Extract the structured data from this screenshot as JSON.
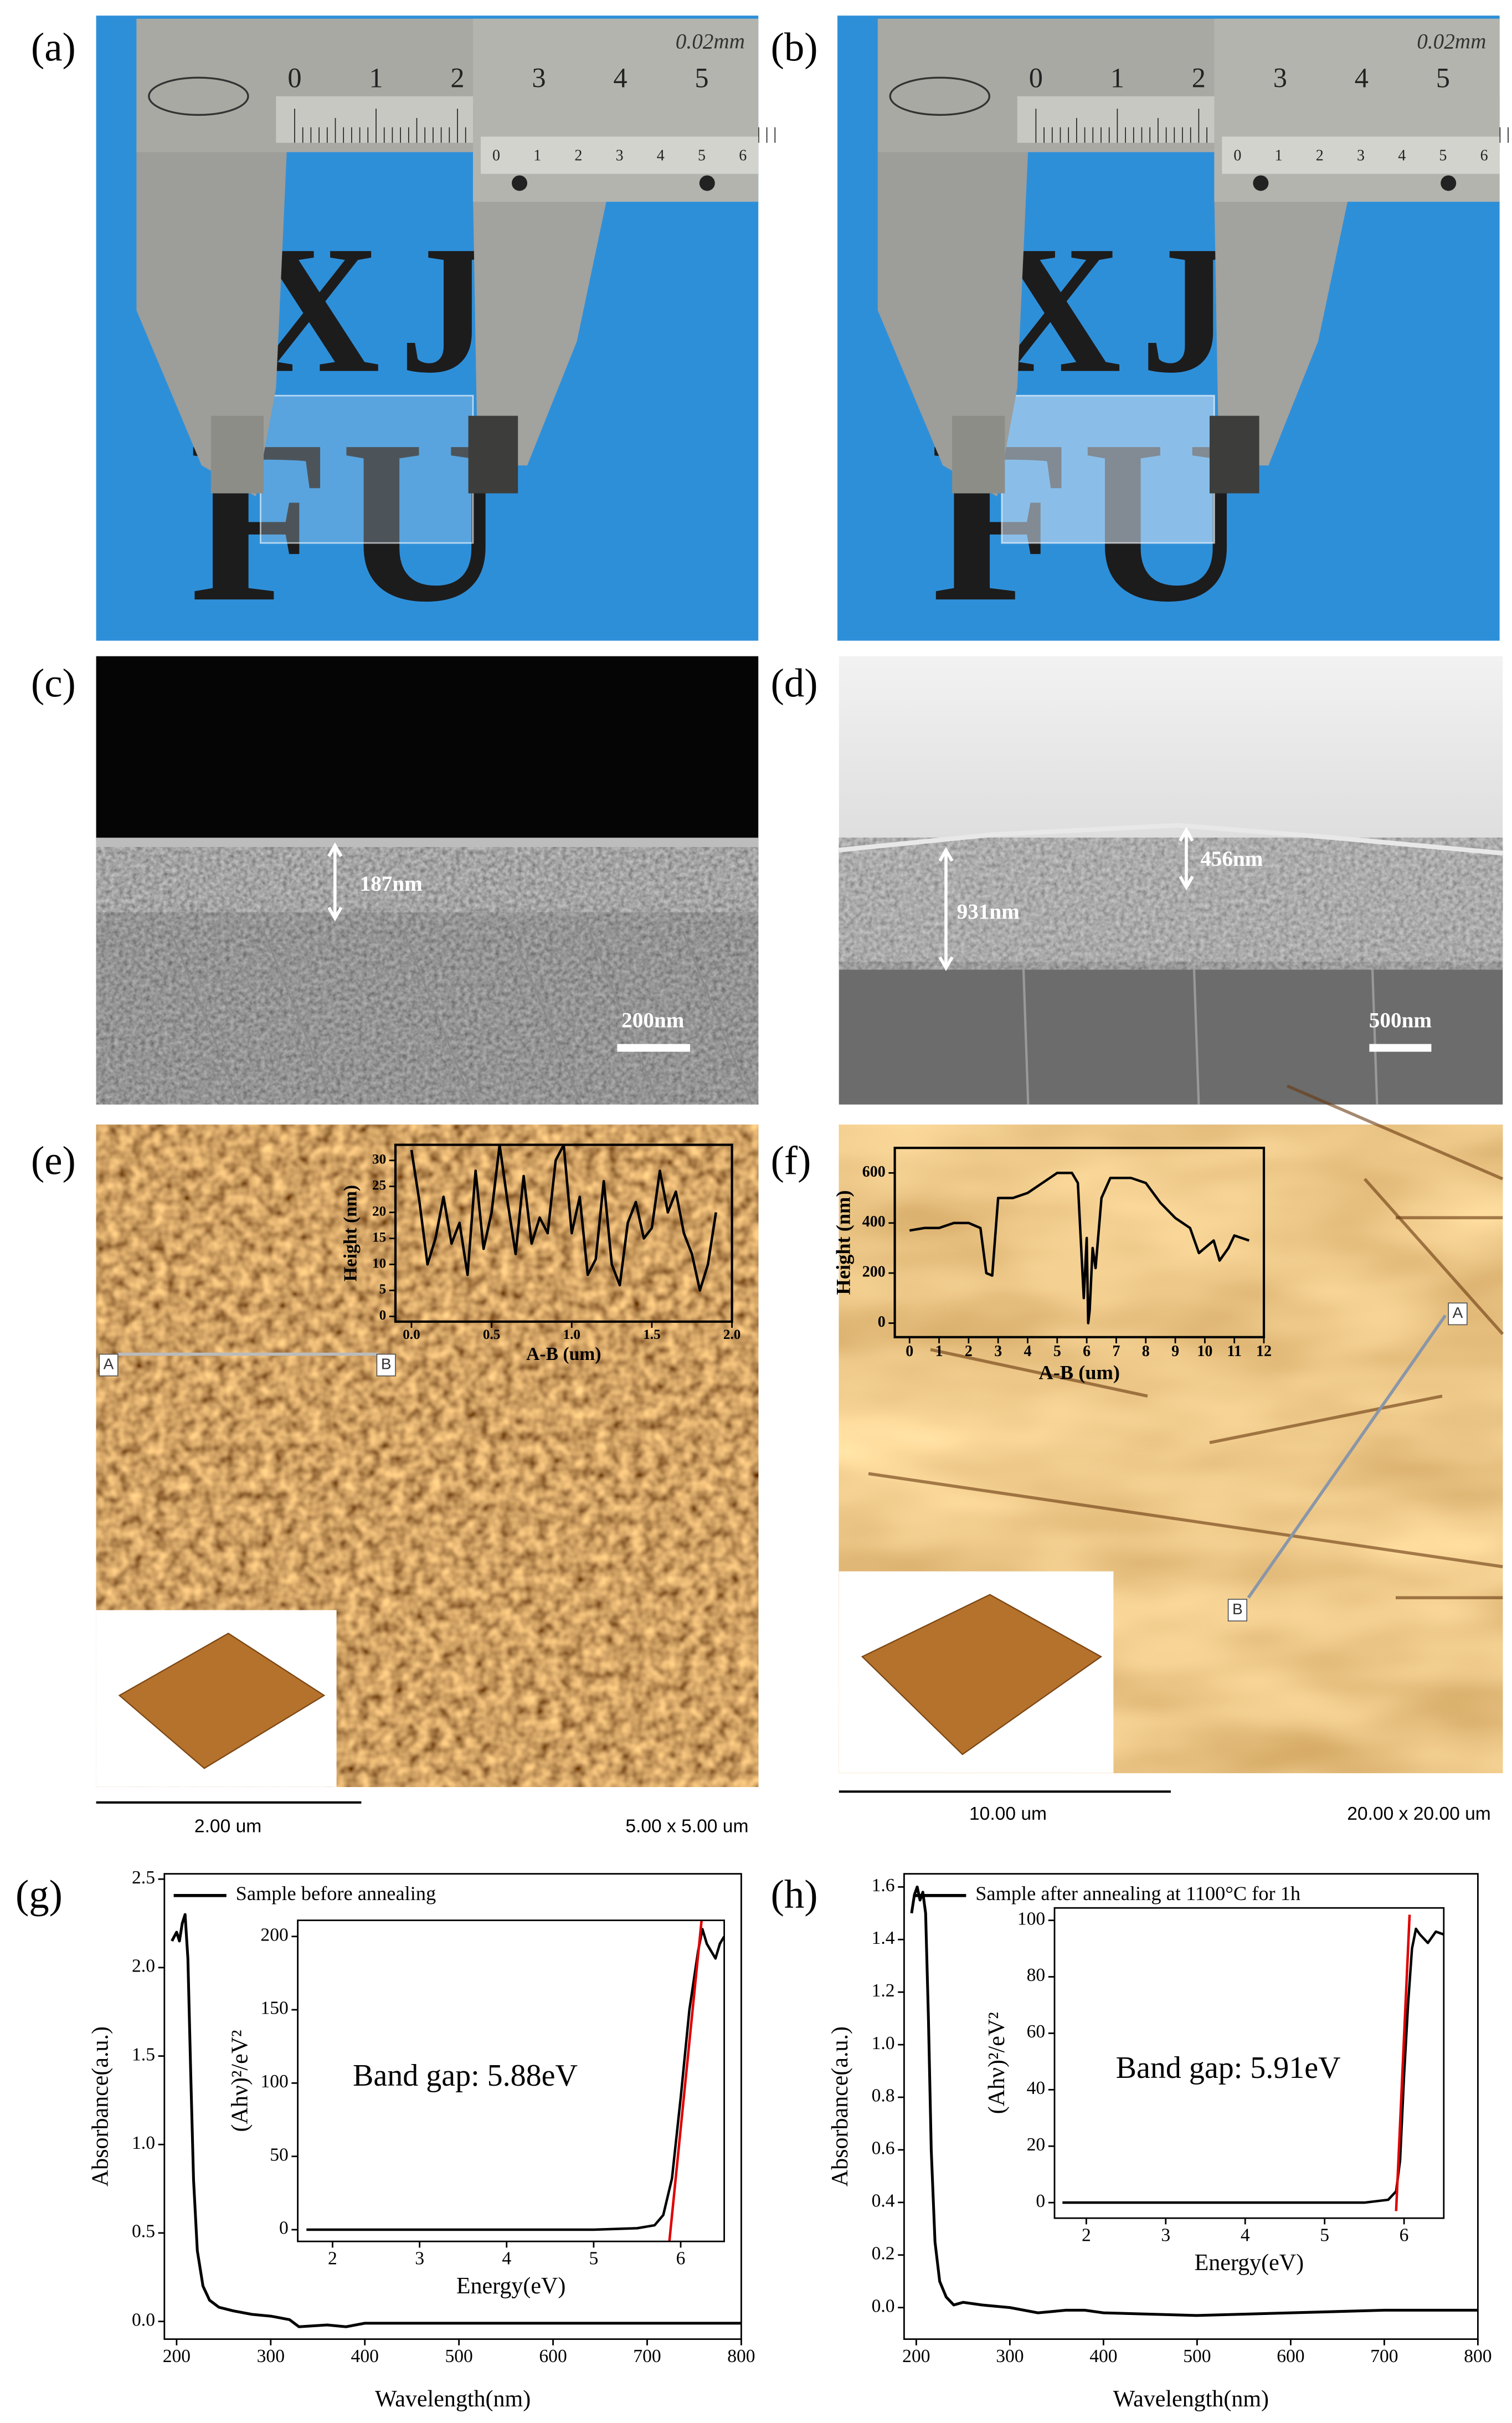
{
  "figure": {
    "a": {
      "label": "(a)",
      "vernier_unit": "0.02mm",
      "main_scale": [
        "0",
        "1",
        "2",
        "3",
        "4",
        "5"
      ],
      "vernier_scale": [
        "0",
        "1",
        "2",
        "3",
        "4",
        "5",
        "6"
      ],
      "letters": [
        "XJ",
        "FU"
      ]
    },
    "b": {
      "label": "(b)",
      "vernier_unit": "0.02mm",
      "main_scale": [
        "0",
        "1",
        "2",
        "3",
        "4",
        "5"
      ],
      "vernier_scale": [
        "0",
        "1",
        "2",
        "3",
        "4",
        "5",
        "6"
      ],
      "letters": [
        "XJ",
        "FU"
      ]
    },
    "c": {
      "label": "(c)",
      "thickness": "187nm",
      "scale_bar": "200nm"
    },
    "d": {
      "label": "(d)",
      "thickness": [
        "931nm",
        "456nm"
      ],
      "scale_bar": "500nm"
    },
    "e": {
      "label": "(e)",
      "markers": [
        "A",
        "B"
      ],
      "scale_bar": "2.00 um",
      "scan_size": "5.00 x 5.00 um"
    },
    "f": {
      "label": "(f)",
      "markers": [
        "A",
        "B"
      ],
      "scale_bar": "10.00 um",
      "scan_size": "20.00 x 20.00 um"
    },
    "g": {
      "label": "(g)"
    },
    "h": {
      "label": "(h)"
    }
  },
  "chart_data": [
    {
      "type": "line",
      "xlabel": "A-B (um)",
      "ylabel": "Height (nm)",
      "xlim": [
        -0.1,
        2.0
      ],
      "ylim": [
        -1,
        33
      ],
      "xticks": [
        {
          "value": 0,
          "label": "0.0"
        },
        0.5,
        {
          "value": 1,
          "label": "1.0"
        },
        1.5,
        {
          "value": 2,
          "label": "2.0"
        }
      ],
      "yticks": [
        0,
        5,
        10,
        15,
        20,
        25,
        30
      ],
      "series": [
        {
          "color": "#000000",
          "x": [
            0,
            0.05,
            0.1,
            0.15,
            0.2,
            0.25,
            0.3,
            0.35,
            0.4,
            0.45,
            0.5,
            0.55,
            0.6,
            0.65,
            0.7,
            0.75,
            0.8,
            0.85,
            0.9,
            0.95,
            1.0,
            1.05,
            1.1,
            1.15,
            1.2,
            1.25,
            1.3,
            1.35,
            1.4,
            1.45,
            1.5,
            1.55,
            1.6,
            1.65,
            1.7,
            1.75,
            1.8,
            1.85,
            1.9
          ],
          "values": [
            32,
            22,
            10,
            15,
            23,
            14,
            18,
            8,
            28,
            13,
            20,
            33,
            22,
            12,
            27,
            14,
            19,
            16,
            30,
            33,
            16,
            23,
            8,
            11,
            26,
            10,
            6,
            18,
            22,
            15,
            17,
            28,
            20,
            24,
            16,
            12,
            5,
            10,
            20
          ]
        }
      ]
    },
    {
      "type": "line",
      "xlabel": "A-B (um)",
      "ylabel": "Height (nm)",
      "xlim": [
        -0.5,
        12
      ],
      "ylim": [
        -56,
        700
      ],
      "xticks": [
        0,
        1,
        2,
        3,
        4,
        5,
        6,
        7,
        8,
        9,
        10,
        11,
        12
      ],
      "yticks": [
        0,
        200,
        400,
        600
      ],
      "series": [
        {
          "color": "#000000",
          "x": [
            0,
            0.5,
            1,
            1.5,
            2,
            2.4,
            2.6,
            2.8,
            3,
            3.5,
            4,
            4.5,
            5,
            5.5,
            5.7,
            5.9,
            6.0,
            6.05,
            6.1,
            6.2,
            6.3,
            6.5,
            6.8,
            7,
            7.5,
            8,
            8.5,
            9,
            9.5,
            9.8,
            10,
            10.3,
            10.5,
            10.8,
            11,
            11.5
          ],
          "values": [
            370,
            380,
            380,
            400,
            400,
            380,
            200,
            190,
            500,
            500,
            520,
            560,
            600,
            600,
            560,
            100,
            340,
            0,
            50,
            300,
            220,
            500,
            580,
            580,
            580,
            560,
            480,
            420,
            380,
            280,
            300,
            330,
            250,
            300,
            350,
            330
          ]
        }
      ]
    },
    {
      "type": "line",
      "xlabel": "Wavelength(nm)",
      "ylabel": "Absorbance(a.u.)",
      "xlim": [
        187,
        800
      ],
      "ylim": [
        -0.1,
        2.53
      ],
      "xticks": [
        200,
        300,
        400,
        500,
        600,
        700,
        800
      ],
      "yticks": [
        {
          "value": 0,
          "label": "0.0"
        },
        0.5,
        {
          "value": 1,
          "label": "1.0"
        },
        1.5,
        {
          "value": 2,
          "label": "2.0"
        },
        2.5
      ],
      "series": [
        {
          "name": "Sample before annealing",
          "color": "#000000",
          "x": [
            195,
            200,
            203,
            206,
            209,
            212,
            215,
            218,
            222,
            228,
            235,
            245,
            260,
            280,
            300,
            320,
            330,
            360,
            380,
            400,
            450,
            500,
            600,
            700,
            800
          ],
          "values": [
            2.15,
            2.2,
            2.15,
            2.25,
            2.3,
            2.05,
            1.4,
            0.8,
            0.4,
            0.2,
            0.12,
            0.08,
            0.06,
            0.04,
            0.03,
            0.01,
            -0.03,
            -0.02,
            -0.03,
            -0.01,
            -0.01,
            -0.01,
            -0.01,
            -0.01,
            -0.01
          ]
        }
      ]
    },
    {
      "type": "line",
      "xlabel": "Energy(eV)",
      "ylabel": "(Ahν)²/eV²",
      "xlim": [
        1.6,
        6.5
      ],
      "ylim": [
        -8,
        211
      ],
      "xticks": [
        2,
        3,
        4,
        5,
        6
      ],
      "yticks": [
        0,
        50,
        100,
        150,
        200
      ],
      "annotation": "Band gap: 5.88eV",
      "series": [
        {
          "color": "#000000",
          "x": [
            1.7,
            2,
            3,
            4,
            5,
            5.5,
            5.7,
            5.8,
            5.9,
            6.0,
            6.1,
            6.2,
            6.25,
            6.3,
            6.35,
            6.4,
            6.45,
            6.5
          ],
          "values": [
            0,
            0,
            0,
            0,
            0,
            1,
            3,
            10,
            35,
            90,
            150,
            190,
            205,
            195,
            190,
            185,
            195,
            200
          ]
        },
        {
          "color": "#e00000",
          "x": [
            5.87,
            6.24
          ],
          "values": [
            -8,
            211
          ]
        }
      ]
    },
    {
      "type": "line",
      "xlabel": "Wavelength(nm)",
      "ylabel": "Absorbance(a.u.)",
      "xlim": [
        187,
        800
      ],
      "ylim": [
        -0.12,
        1.65
      ],
      "xticks": [
        200,
        300,
        400,
        500,
        600,
        700,
        800
      ],
      "yticks": [
        {
          "value": 0,
          "label": "0.0"
        },
        0.2,
        0.4,
        0.6,
        0.8,
        {
          "value": 1,
          "label": "1.0"
        },
        1.2,
        1.4,
        1.6
      ],
      "series": [
        {
          "name": "Sample after annealing at 1100°C for 1h",
          "color": "#000000",
          "x": [
            195,
            198,
            201,
            204,
            207,
            210,
            213,
            216,
            220,
            225,
            232,
            240,
            250,
            270,
            300,
            330,
            360,
            380,
            400,
            500,
            600,
            700,
            800
          ],
          "values": [
            1.5,
            1.57,
            1.6,
            1.55,
            1.58,
            1.5,
            1.1,
            0.6,
            0.25,
            0.1,
            0.04,
            0.01,
            0.02,
            0.01,
            0,
            -0.02,
            -0.01,
            -0.01,
            -0.02,
            -0.03,
            -0.02,
            -0.01,
            -0.01
          ]
        }
      ]
    },
    {
      "type": "line",
      "xlabel": "Energy(eV)",
      "ylabel": "(Ahν)²/eV²",
      "xlim": [
        1.6,
        6.5
      ],
      "ylim": [
        -5.5,
        104.4
      ],
      "xticks": [
        2,
        3,
        4,
        5,
        6
      ],
      "yticks": [
        0,
        20,
        40,
        60,
        80,
        100
      ],
      "annotation": "Band gap: 5.91eV",
      "series": [
        {
          "color": "#000000",
          "x": [
            1.7,
            2,
            3,
            4,
            5,
            5.5,
            5.8,
            5.9,
            5.95,
            6.0,
            6.05,
            6.1,
            6.15,
            6.2,
            6.3,
            6.4,
            6.5
          ],
          "values": [
            0,
            0,
            0,
            0,
            0,
            0,
            1,
            4,
            15,
            45,
            70,
            90,
            97,
            95,
            92,
            96,
            95
          ]
        },
        {
          "color": "#e00000",
          "x": [
            5.9,
            6.07
          ],
          "values": [
            -3,
            102
          ]
        }
      ]
    }
  ]
}
